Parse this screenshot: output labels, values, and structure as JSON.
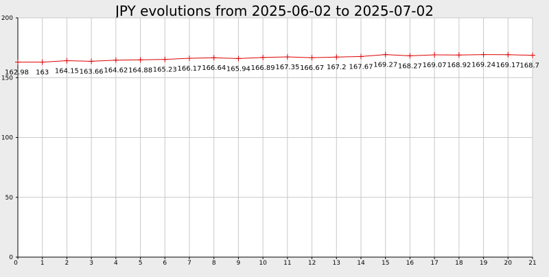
{
  "chart_data": {
    "type": "line",
    "title": "JPY evolutions from 2025-06-02 to 2025-07-02",
    "x": [
      0,
      1,
      2,
      3,
      4,
      5,
      6,
      7,
      8,
      9,
      10,
      11,
      12,
      13,
      14,
      15,
      16,
      17,
      18,
      19,
      20,
      21
    ],
    "series": [
      {
        "values": [
          162.98,
          163,
          164.15,
          163.66,
          164.62,
          164.88,
          165.23,
          166.17,
          166.64,
          165.94,
          166.89,
          167.35,
          166.67,
          167.2,
          167.67,
          169.27,
          168.27,
          169.07,
          168.92,
          169.24,
          169.17,
          168.7
        ],
        "labels": [
          "162.98",
          "163",
          "164.15",
          "163.66",
          "164.62",
          "164.88",
          "165.23",
          "166.17",
          "166.64",
          "165.94",
          "166.89",
          "167.35",
          "166.67",
          "167.2",
          "167.67",
          "169.27",
          "168.27",
          "169.07",
          "168.92",
          "169.24",
          "169.17",
          "168.7"
        ]
      }
    ],
    "x_ticks": [
      "0",
      "1",
      "2",
      "3",
      "4",
      "5",
      "6",
      "7",
      "8",
      "9",
      "10",
      "11",
      "12",
      "13",
      "14",
      "15",
      "16",
      "17",
      "18",
      "19",
      "20",
      "21"
    ],
    "y_ticks": [
      "0",
      "50",
      "100",
      "150",
      "200"
    ],
    "y_tick_values": [
      0,
      50,
      100,
      150,
      200
    ],
    "xlim": [
      0,
      21
    ],
    "ylim": [
      0,
      200
    ],
    "grid": true,
    "colors": {
      "series": "#dd0000",
      "background": "#ececec",
      "plot_area": "#ffffff",
      "grid": "#c8c8c8"
    }
  }
}
